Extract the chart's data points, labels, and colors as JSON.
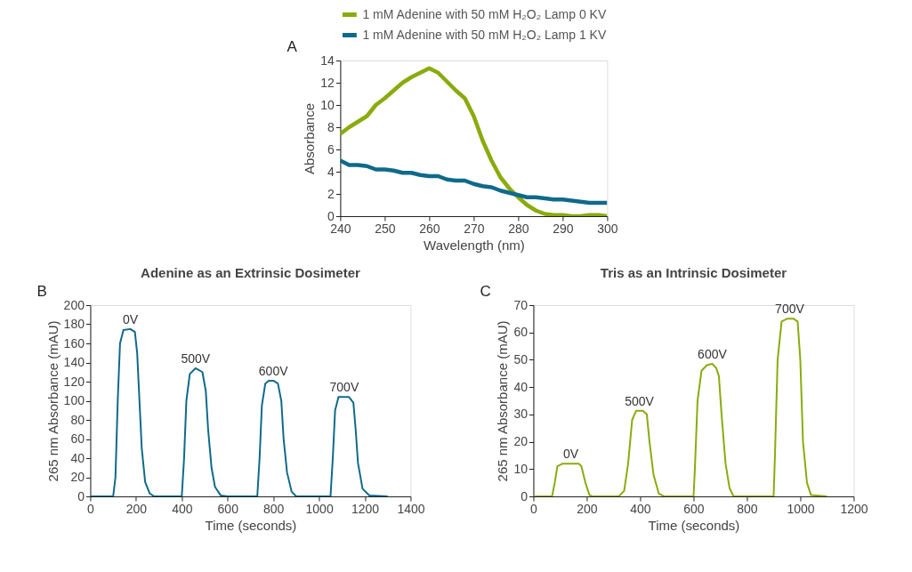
{
  "chart_data": [
    {
      "type": "line",
      "xlabel": "Wavelength (nm)",
      "ylabel": "Absorbance",
      "xlim": [
        240,
        300
      ],
      "xticks": [
        240,
        250,
        260,
        270,
        280,
        290,
        300
      ],
      "ylim": [
        0,
        14
      ],
      "yticks": [
        0,
        2,
        4,
        6,
        8,
        10,
        12,
        14
      ],
      "grid": false,
      "legend": "top",
      "marker": "none",
      "line_style": "solid",
      "annotations": [
        "A"
      ],
      "x": [
        240,
        242,
        244,
        246,
        248,
        250,
        252,
        254,
        256,
        258,
        260,
        262,
        264,
        266,
        268,
        270,
        272,
        274,
        276,
        278,
        280,
        282,
        284,
        286,
        288,
        290,
        292,
        294,
        296,
        298,
        300
      ],
      "series": [
        {
          "name": "1 mM Adenine with 50 mM H₂O₂ Lamp 0 KV",
          "color": "#8aab0e",
          "values": [
            7.4,
            8.0,
            8.5,
            9.0,
            10.0,
            10.6,
            11.3,
            12.0,
            12.5,
            12.9,
            13.3,
            12.9,
            12.1,
            11.3,
            10.6,
            9.0,
            6.8,
            5.0,
            3.5,
            2.5,
            1.7,
            1.0,
            0.5,
            0.2,
            0.1,
            0.1,
            0.0,
            0.0,
            0.1,
            0.1,
            0.0
          ]
        },
        {
          "name": "1 mM Adenine with 50 mM H₂O₂ Lamp 1 KV",
          "color": "#0f6a8a",
          "values": [
            5.0,
            4.6,
            4.6,
            4.5,
            4.2,
            4.2,
            4.1,
            3.9,
            3.9,
            3.7,
            3.6,
            3.6,
            3.3,
            3.2,
            3.2,
            2.9,
            2.7,
            2.6,
            2.3,
            2.1,
            1.9,
            1.7,
            1.7,
            1.6,
            1.5,
            1.5,
            1.4,
            1.3,
            1.2,
            1.2,
            1.2
          ]
        }
      ]
    },
    {
      "type": "line",
      "title": "Adenine as an Extrinsic Dosimeter",
      "xlabel": "Time (seconds)",
      "ylabel": "265 nm Absorbance (mAU)",
      "xlim": [
        0,
        1400
      ],
      "xticks": [
        0,
        200,
        400,
        600,
        800,
        1000,
        1200,
        1400
      ],
      "ylim": [
        0,
        200
      ],
      "yticks": [
        0,
        20,
        40,
        60,
        80,
        100,
        120,
        140,
        160,
        180,
        200
      ],
      "grid": false,
      "legend": false,
      "marker": "none",
      "line_style": "solid",
      "annotations": [
        "B",
        {
          "text": "0V",
          "x": 175,
          "y": 175
        },
        {
          "text": "500V",
          "x": 460,
          "y": 134
        },
        {
          "text": "600V",
          "x": 800,
          "y": 121
        },
        {
          "text": "700V",
          "x": 1110,
          "y": 104
        }
      ],
      "series": [
        {
          "color": "#0f6a8a",
          "x": [
            0,
            100,
            110,
            120,
            130,
            145,
            175,
            195,
            205,
            215,
            225,
            240,
            260,
            280,
            400,
            410,
            420,
            435,
            460,
            490,
            505,
            515,
            530,
            545,
            570,
            600,
            730,
            740,
            750,
            765,
            780,
            800,
            820,
            835,
            845,
            860,
            880,
            900,
            1050,
            1060,
            1070,
            1085,
            1110,
            1130,
            1150,
            1160,
            1170,
            1190,
            1220,
            1300
          ],
          "values": [
            0,
            0,
            20,
            100,
            160,
            174,
            175,
            172,
            150,
            100,
            50,
            15,
            3,
            0,
            0,
            40,
            100,
            128,
            134,
            130,
            110,
            70,
            30,
            10,
            1,
            0,
            0,
            40,
            95,
            118,
            121,
            121,
            118,
            100,
            60,
            25,
            5,
            0,
            0,
            40,
            90,
            104,
            104,
            104,
            98,
            70,
            35,
            8,
            1,
            0
          ]
        }
      ]
    },
    {
      "type": "line",
      "title": "Tris as an Intrinsic Dosimeter",
      "xlabel": "Time (seconds)",
      "ylabel": "265 nm Absorbance (mAU)",
      "xlim": [
        0,
        1200
      ],
      "xticks": [
        0,
        200,
        400,
        600,
        800,
        1000,
        1200
      ],
      "ylim": [
        0,
        70
      ],
      "yticks": [
        0,
        10,
        20,
        30,
        40,
        50,
        60,
        70
      ],
      "grid": false,
      "legend": false,
      "marker": "none",
      "line_style": "solid",
      "annotations": [
        "C",
        {
          "text": "0V",
          "x": 140,
          "y": 12
        },
        {
          "text": "500V",
          "x": 397,
          "y": 31.3
        },
        {
          "text": "600V",
          "x": 670,
          "y": 48.5
        },
        {
          "text": "700V",
          "x": 960,
          "y": 65
        }
      ],
      "series": [
        {
          "color": "#8aab0e",
          "x": [
            0,
            70,
            80,
            90,
            110,
            140,
            170,
            180,
            195,
            210,
            220,
            320,
            340,
            355,
            370,
            385,
            397,
            410,
            425,
            435,
            450,
            470,
            490,
            600,
            605,
            615,
            630,
            650,
            670,
            685,
            695,
            705,
            720,
            735,
            750,
            900,
            905,
            915,
            930,
            950,
            960,
            975,
            990,
            1000,
            1010,
            1025,
            1040,
            1100
          ],
          "values": [
            0,
            0,
            5,
            11,
            12,
            12,
            12,
            11,
            5,
            0.5,
            0,
            0,
            2,
            12,
            28,
            31.3,
            31.3,
            31.3,
            30,
            20,
            8,
            1,
            0,
            0,
            10,
            35,
            46,
            48,
            48.5,
            47,
            44,
            30,
            12,
            3,
            0,
            0,
            15,
            50,
            64,
            65,
            65,
            65,
            64,
            50,
            20,
            5,
            0.5,
            0
          ]
        }
      ]
    }
  ]
}
